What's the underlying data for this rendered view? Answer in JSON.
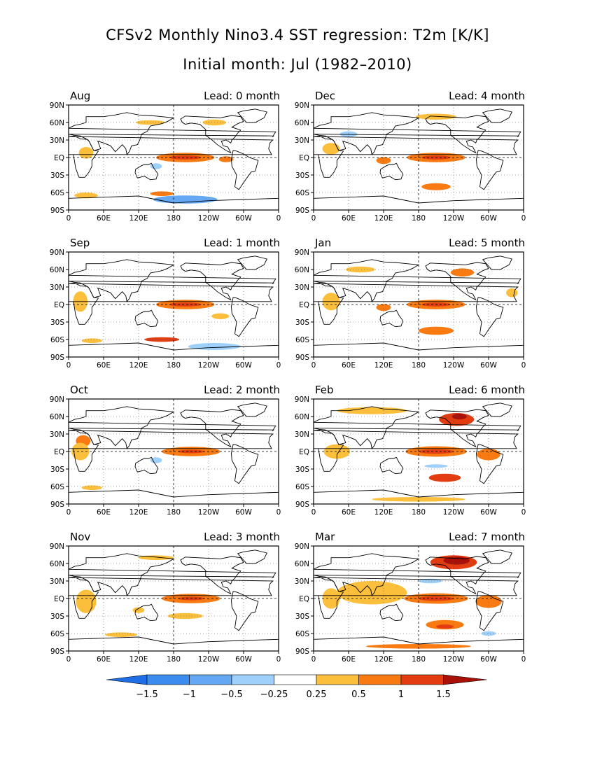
{
  "title": "CFSv2 Monthly Nino3.4 SST regression: T2m [K/K]",
  "subtitle": "Initial month: Jul (1982–2010)",
  "colors": {
    "neg_3": "#1e6ee8",
    "neg_2": "#3c8cf0",
    "neg_1": "#64a8f4",
    "neg_0": "#9ed0fb",
    "zero": "#ffffff",
    "pos_0": "#fbbf3c",
    "pos_1": "#f97a10",
    "pos_2": "#e23c10",
    "pos_3": "#a81008",
    "land": "#000000"
  },
  "chart_data": {
    "type": "map",
    "projection": "equirectangular",
    "lon_ticks": [
      "0",
      "60E",
      "120E",
      "180",
      "120W",
      "60W",
      "0"
    ],
    "lat_ticks": [
      "90N",
      "60N",
      "30N",
      "EQ",
      "30S",
      "60S",
      "90S"
    ],
    "grid": "dotted",
    "colorbar": {
      "levels": [
        -1.5,
        -1,
        -0.5,
        -0.25,
        0.25,
        0.5,
        1,
        1.5
      ],
      "labels": [
        "−1.5",
        "−1",
        "−0.5",
        "−0.25",
        "0.25",
        "0.5",
        "1",
        "1.5"
      ],
      "extend": "both"
    },
    "panels": [
      {
        "month": "Aug",
        "lead": "Lead: 0 month",
        "col": 0,
        "row": 0,
        "blobs": [
          {
            "lon": 200,
            "lat": 0,
            "w": 100,
            "h": 16,
            "c": 1
          },
          {
            "lon": 200,
            "lat": 0,
            "w": 55,
            "h": 7,
            "c": 2
          },
          {
            "lon": 270,
            "lat": -3,
            "w": 25,
            "h": 10,
            "c": 1
          },
          {
            "lon": 200,
            "lat": -72,
            "w": 110,
            "h": 14,
            "c": -2
          },
          {
            "lon": 160,
            "lat": -62,
            "w": 40,
            "h": 8,
            "c": 1
          },
          {
            "lon": 30,
            "lat": -65,
            "w": 40,
            "h": 10,
            "c": 0
          },
          {
            "lon": 30,
            "lat": 8,
            "w": 25,
            "h": 20,
            "c": 0
          },
          {
            "lon": 150,
            "lat": -15,
            "w": 20,
            "h": 10,
            "c": -1
          },
          {
            "lon": 140,
            "lat": 60,
            "w": 50,
            "h": 8,
            "c": 0
          },
          {
            "lon": 250,
            "lat": 60,
            "w": 40,
            "h": 10,
            "c": 0
          }
        ]
      },
      {
        "month": "Sep",
        "lead": "Lead: 1 month",
        "col": 0,
        "row": 1,
        "blobs": [
          {
            "lon": 200,
            "lat": 0,
            "w": 100,
            "h": 16,
            "c": 1
          },
          {
            "lon": 200,
            "lat": 0,
            "w": 55,
            "h": 7,
            "c": 2
          },
          {
            "lon": 160,
            "lat": -60,
            "w": 60,
            "h": 8,
            "c": 2
          },
          {
            "lon": 250,
            "lat": -72,
            "w": 90,
            "h": 12,
            "c": -1
          },
          {
            "lon": 20,
            "lat": 5,
            "w": 25,
            "h": 35,
            "c": 0
          },
          {
            "lon": 40,
            "lat": -62,
            "w": 35,
            "h": 8,
            "c": 0
          },
          {
            "lon": 260,
            "lat": -20,
            "w": 30,
            "h": 10,
            "c": 0
          }
        ]
      },
      {
        "month": "Oct",
        "lead": "Lead: 2 month",
        "col": 0,
        "row": 2,
        "blobs": [
          {
            "lon": 210,
            "lat": 0,
            "w": 100,
            "h": 16,
            "c": 1
          },
          {
            "lon": 210,
            "lat": 0,
            "w": 45,
            "h": 6,
            "c": 2
          },
          {
            "lon": 25,
            "lat": 18,
            "w": 25,
            "h": 20,
            "c": 1
          },
          {
            "lon": 20,
            "lat": 0,
            "w": 30,
            "h": 30,
            "c": 0
          },
          {
            "lon": 150,
            "lat": -15,
            "w": 20,
            "h": 10,
            "c": -1
          },
          {
            "lon": 40,
            "lat": -62,
            "w": 35,
            "h": 8,
            "c": 0
          }
        ]
      },
      {
        "month": "Nov",
        "lead": "Lead: 3 month",
        "col": 0,
        "row": 3,
        "blobs": [
          {
            "lon": 210,
            "lat": 0,
            "w": 100,
            "h": 16,
            "c": 1
          },
          {
            "lon": 210,
            "lat": 0,
            "w": 45,
            "h": 6,
            "c": 2
          },
          {
            "lon": 200,
            "lat": -30,
            "w": 60,
            "h": 10,
            "c": 0
          },
          {
            "lon": 30,
            "lat": -5,
            "w": 35,
            "h": 40,
            "c": 0
          },
          {
            "lon": 120,
            "lat": -20,
            "w": 20,
            "h": 10,
            "c": 0
          },
          {
            "lon": 150,
            "lat": 70,
            "w": 60,
            "h": 8,
            "c": 0
          },
          {
            "lon": 90,
            "lat": -62,
            "w": 55,
            "h": 8,
            "c": 0
          }
        ]
      },
      {
        "month": "Dec",
        "lead": "Lead: 4 month",
        "col": 1,
        "row": 0,
        "blobs": [
          {
            "lon": 210,
            "lat": 0,
            "w": 100,
            "h": 16,
            "c": 1
          },
          {
            "lon": 210,
            "lat": 0,
            "w": 50,
            "h": 7,
            "c": 2
          },
          {
            "lon": 210,
            "lat": -50,
            "w": 50,
            "h": 12,
            "c": 1
          },
          {
            "lon": 60,
            "lat": 40,
            "w": 30,
            "h": 10,
            "c": -1
          },
          {
            "lon": 30,
            "lat": 15,
            "w": 30,
            "h": 20,
            "c": 0
          },
          {
            "lon": 120,
            "lat": -5,
            "w": 25,
            "h": 12,
            "c": 1
          },
          {
            "lon": 210,
            "lat": 70,
            "w": 70,
            "h": 10,
            "c": 0
          }
        ]
      },
      {
        "month": "Jan",
        "lead": "Lead: 5 month",
        "col": 1,
        "row": 1,
        "blobs": [
          {
            "lon": 210,
            "lat": 0,
            "w": 100,
            "h": 16,
            "c": 1
          },
          {
            "lon": 210,
            "lat": 0,
            "w": 50,
            "h": 7,
            "c": 2
          },
          {
            "lon": 210,
            "lat": -45,
            "w": 60,
            "h": 14,
            "c": 1
          },
          {
            "lon": 255,
            "lat": 55,
            "w": 40,
            "h": 14,
            "c": 1
          },
          {
            "lon": 30,
            "lat": 5,
            "w": 30,
            "h": 30,
            "c": 0
          },
          {
            "lon": 80,
            "lat": 60,
            "w": 50,
            "h": 10,
            "c": 0
          },
          {
            "lon": 120,
            "lat": -5,
            "w": 25,
            "h": 12,
            "c": 1
          },
          {
            "lon": 340,
            "lat": 20,
            "w": 20,
            "h": 15,
            "c": 0
          }
        ]
      },
      {
        "month": "Feb",
        "lead": "Lead: 6 month",
        "col": 1,
        "row": 2,
        "blobs": [
          {
            "lon": 210,
            "lat": 0,
            "w": 105,
            "h": 18,
            "c": 1
          },
          {
            "lon": 210,
            "lat": 0,
            "w": 60,
            "h": 8,
            "c": 2
          },
          {
            "lon": 225,
            "lat": -45,
            "w": 55,
            "h": 14,
            "c": 2
          },
          {
            "lon": 245,
            "lat": 55,
            "w": 60,
            "h": 22,
            "c": 2
          },
          {
            "lon": 250,
            "lat": 60,
            "w": 25,
            "h": 10,
            "c": 3
          },
          {
            "lon": 100,
            "lat": 70,
            "w": 120,
            "h": 12,
            "c": 0
          },
          {
            "lon": 40,
            "lat": 0,
            "w": 45,
            "h": 25,
            "c": 0
          },
          {
            "lon": 300,
            "lat": -5,
            "w": 40,
            "h": 20,
            "c": 1
          },
          {
            "lon": 180,
            "lat": -82,
            "w": 160,
            "h": 8,
            "c": 0
          },
          {
            "lon": 210,
            "lat": -25,
            "w": 40,
            "h": 6,
            "c": -1
          }
        ]
      },
      {
        "month": "Mar",
        "lead": "Lead: 7 month",
        "col": 1,
        "row": 3,
        "blobs": [
          {
            "lon": 100,
            "lat": 10,
            "w": 120,
            "h": 40,
            "c": 0
          },
          {
            "lon": 210,
            "lat": 0,
            "w": 110,
            "h": 18,
            "c": 1
          },
          {
            "lon": 210,
            "lat": 0,
            "w": 60,
            "h": 8,
            "c": 2
          },
          {
            "lon": 225,
            "lat": -45,
            "w": 65,
            "h": 16,
            "c": 1
          },
          {
            "lon": 225,
            "lat": -48,
            "w": 30,
            "h": 7,
            "c": 2
          },
          {
            "lon": 240,
            "lat": 62,
            "w": 80,
            "h": 24,
            "c": 2
          },
          {
            "lon": 245,
            "lat": 65,
            "w": 45,
            "h": 14,
            "c": 3
          },
          {
            "lon": 180,
            "lat": -82,
            "w": 180,
            "h": 8,
            "c": 1
          },
          {
            "lon": 300,
            "lat": -5,
            "w": 45,
            "h": 22,
            "c": 1
          },
          {
            "lon": 30,
            "lat": 0,
            "w": 30,
            "h": 35,
            "c": 0
          },
          {
            "lon": 200,
            "lat": 30,
            "w": 40,
            "h": 8,
            "c": -1
          },
          {
            "lon": 300,
            "lat": -60,
            "w": 25,
            "h": 8,
            "c": -1
          }
        ]
      }
    ]
  }
}
